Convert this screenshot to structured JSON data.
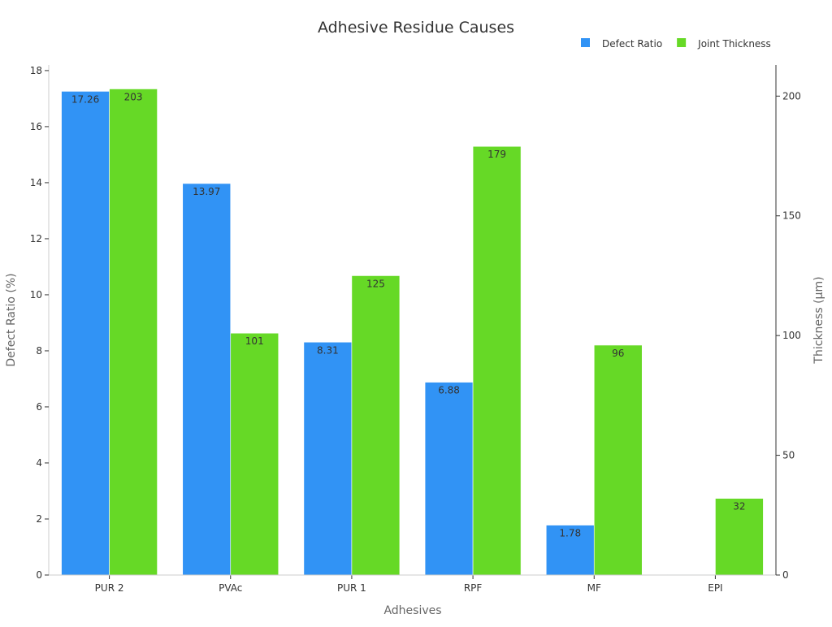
{
  "chart_data": {
    "type": "bar",
    "title": "Adhesive Residue Causes",
    "xlabel": "Adhesives",
    "ylabel": "Defect Ratio (%)",
    "ylabel_right": "Thickness (μm)",
    "categories": [
      "PUR 2",
      "PVAc",
      "PUR 1",
      "RPF",
      "MF",
      "EPI"
    ],
    "series": [
      {
        "name": "Defect Ratio",
        "axis": "left",
        "color": "#3193f5",
        "values": [
          17.26,
          13.97,
          8.31,
          6.88,
          1.78,
          0.02
        ],
        "labels": [
          "17.26",
          "13.97",
          "8.31",
          "6.88",
          "1.78",
          ""
        ]
      },
      {
        "name": "Joint Thickness",
        "axis": "right",
        "color": "#66d926",
        "values": [
          203,
          101,
          125,
          179,
          96,
          32
        ],
        "labels": [
          "203",
          "101",
          "125",
          "179",
          "96",
          "32"
        ]
      }
    ],
    "ylim": [
      0,
      18.2
    ],
    "ylim_right": [
      0,
      213
    ],
    "yticks": [
      0,
      2,
      4,
      6,
      8,
      10,
      12,
      14,
      16,
      18
    ],
    "yticks_right": [
      0,
      50,
      100,
      150,
      200
    ],
    "grid": false,
    "legend_position": "top-right"
  }
}
